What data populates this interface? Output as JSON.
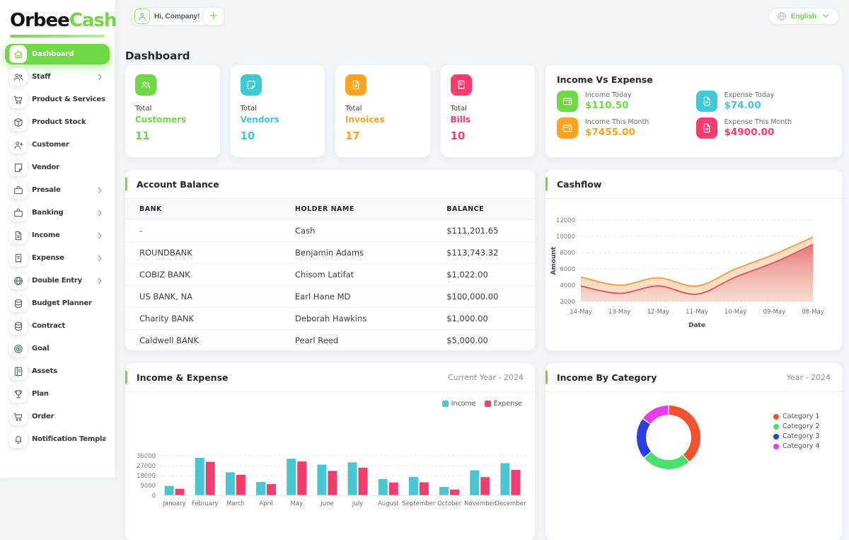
{
  "theme": {
    "primary": "#6fd943",
    "secondary": "#3ec9d6",
    "warning": "#ffa21d",
    "danger": "#ff3a6e"
  },
  "brand": {
    "name_primary": "Orbee",
    "name_secondary": "Cash"
  },
  "topbar": {
    "company_button": "Hi, Company!",
    "language": "English"
  },
  "page_title": "Dashboard",
  "sidebar": {
    "items": [
      {
        "label": "Dashboard",
        "icon": "home",
        "active": true,
        "expandable": false
      },
      {
        "label": "Staff",
        "icon": "users",
        "active": false,
        "expandable": true
      },
      {
        "label": "Product & Services",
        "icon": "cart",
        "active": false,
        "expandable": false
      },
      {
        "label": "Product Stock",
        "icon": "box",
        "active": false,
        "expandable": false
      },
      {
        "label": "Customer",
        "icon": "user-plus",
        "active": false,
        "expandable": false
      },
      {
        "label": "Vendor",
        "icon": "note",
        "active": false,
        "expandable": false
      },
      {
        "label": "Presale",
        "icon": "briefcase",
        "active": false,
        "expandable": true
      },
      {
        "label": "Banking",
        "icon": "briefcase",
        "active": false,
        "expandable": true
      },
      {
        "label": "Income",
        "icon": "file",
        "active": false,
        "expandable": true
      },
      {
        "label": "Expense",
        "icon": "receipt",
        "active": false,
        "expandable": true
      },
      {
        "label": "Double Entry",
        "icon": "globe",
        "active": false,
        "expandable": true
      },
      {
        "label": "Budget Planner",
        "icon": "coins",
        "active": false,
        "expandable": false
      },
      {
        "label": "Contract",
        "icon": "coins",
        "active": false,
        "expandable": false
      },
      {
        "label": "Goal",
        "icon": "target",
        "active": false,
        "expandable": false
      },
      {
        "label": "Assets",
        "icon": "notebook",
        "active": false,
        "expandable": false
      },
      {
        "label": "Plan",
        "icon": "trophy",
        "active": false,
        "expandable": false
      },
      {
        "label": "Order",
        "icon": "cart",
        "active": false,
        "expandable": false
      },
      {
        "label": "Notification Template",
        "icon": "bell",
        "active": false,
        "expandable": false
      }
    ]
  },
  "stats": [
    {
      "label_top": "Total",
      "label": "Customers",
      "value": "11",
      "color": "#6fd943",
      "icon": "users"
    },
    {
      "label_top": "Total",
      "label": "Vendors",
      "value": "10",
      "color": "#3ec9d6",
      "icon": "note"
    },
    {
      "label_top": "Total",
      "label": "Invoices",
      "value": "17",
      "color": "#ffa21d",
      "icon": "file"
    },
    {
      "label_top": "Total",
      "label": "Bills",
      "value": "10",
      "color": "#ff3a6e",
      "icon": "receipt"
    }
  ],
  "income_vs_expense": {
    "title": "Income Vs Expense",
    "tiles": [
      {
        "label": "Income Today",
        "value": "$110.50",
        "color": "#6fd943",
        "icon": "wallet"
      },
      {
        "label": "Expense Today",
        "value": "$74.00",
        "color": "#3ec9d6",
        "icon": "file"
      },
      {
        "label": "Income This Month",
        "value": "$7455.00",
        "color": "#ffa21d",
        "icon": "wallet"
      },
      {
        "label": "Expense This Month",
        "value": "$4900.00",
        "color": "#ff3a6e",
        "icon": "file"
      }
    ]
  },
  "account_balance": {
    "title": "Account Balance",
    "columns": [
      "BANK",
      "HOLDER NAME",
      "BALANCE"
    ],
    "rows": [
      [
        "-",
        "Cash",
        "$111,201.65"
      ],
      [
        "ROUNDBANK",
        "Benjamin Adams",
        "$113,743.32"
      ],
      [
        "COBIZ BANK",
        "Chisom Latifat",
        "$1,022.00"
      ],
      [
        "US BANK, NA",
        "Earl Hane MD",
        "$100,000.00"
      ],
      [
        "Charity BANK",
        "Deborah Hawkins",
        "$1,000.00"
      ],
      [
        "Caldwell BANK",
        "Pearl Reed",
        "$5,000.00"
      ]
    ]
  },
  "chart_data": [
    {
      "id": "cashflow",
      "type": "area",
      "title": "Cashflow",
      "x": [
        "14-May",
        "13-May",
        "12-May",
        "11-May",
        "10-May",
        "09-May",
        "08-May"
      ],
      "series": [
        {
          "name": "upper",
          "color": "#f2a14d",
          "values": [
            5000,
            4000,
            4900,
            3900,
            6000,
            7800,
            9900
          ]
        },
        {
          "name": "lower",
          "color": "#e25a66",
          "values": [
            3900,
            3000,
            3900,
            2900,
            5000,
            6800,
            9000
          ]
        }
      ],
      "xlabel": "Date",
      "ylabel": "Amount",
      "ylim": [
        2000,
        12000
      ],
      "yticks": [
        2000,
        4000,
        6000,
        8000,
        10000,
        12000
      ],
      "grid": true,
      "legend_position": "none"
    },
    {
      "id": "income_expense",
      "type": "bar",
      "title": "Income & Expense",
      "subtitle": "Current Year - 2024",
      "categories": [
        "January",
        "February",
        "March",
        "April",
        "May",
        "June",
        "July",
        "August",
        "September",
        "October",
        "November",
        "December"
      ],
      "series": [
        {
          "name": "Income",
          "color": "#4ac6d2",
          "values": [
            8500,
            34200,
            21000,
            12200,
            33300,
            28000,
            30000,
            14800,
            16700,
            7700,
            22800,
            29300
          ]
        },
        {
          "name": "Expense",
          "color": "#ef3f71",
          "values": [
            6000,
            30500,
            18800,
            10300,
            30800,
            22300,
            25200,
            11800,
            11900,
            5400,
            16600,
            23200
          ]
        }
      ],
      "ylim": [
        0,
        36000
      ],
      "yticks": [
        0,
        9000,
        18000,
        27000,
        36000
      ],
      "grid": true,
      "legend_position": "top-right"
    },
    {
      "id": "income_by_category",
      "type": "donut",
      "title": "Income By Category",
      "subtitle": "Year - 2024",
      "labels": [
        "Category 1",
        "Category 2",
        "Category 3",
        "Category 4"
      ],
      "values": [
        39,
        25,
        21,
        15
      ],
      "colors": [
        "#f4522e",
        "#49e06d",
        "#2b3fe0",
        "#ec3bea"
      ],
      "legend_position": "right"
    }
  ]
}
